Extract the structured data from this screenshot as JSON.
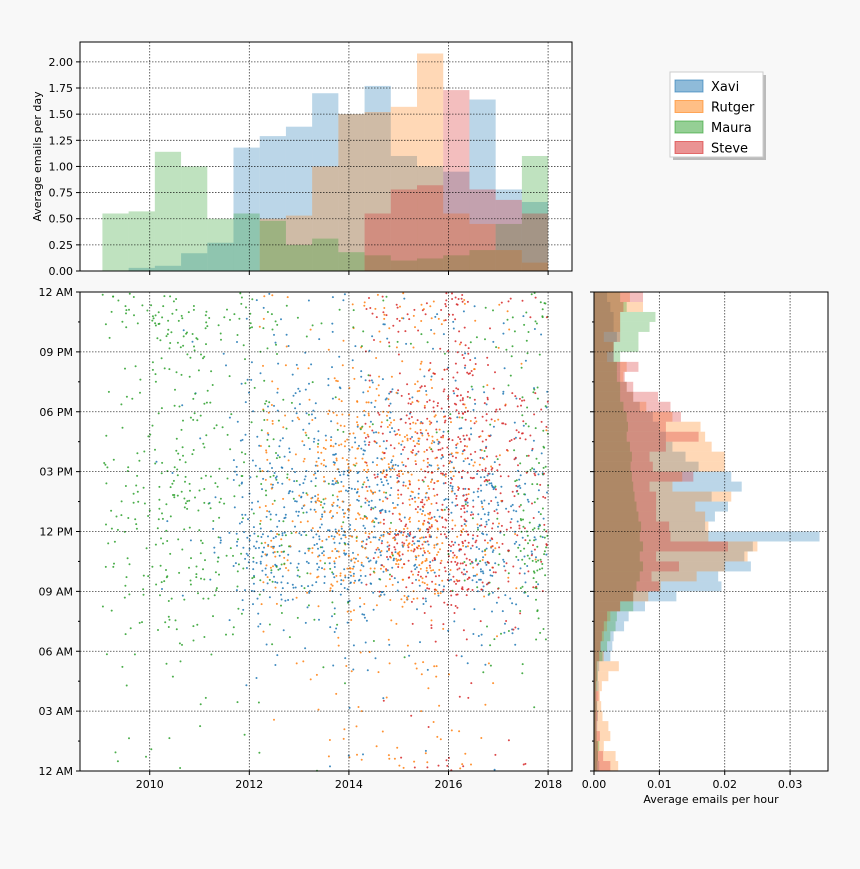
{
  "colors": {
    "Xavi": "#1f77b4",
    "Rutger": "#ff7f0e",
    "Maura": "#2ca02c",
    "Steve": "#d62728"
  },
  "chart_data": [
    {
      "id": "top-histogram",
      "type": "bar",
      "title": "",
      "xlabel": "",
      "ylabel": "Average emails per day",
      "xlim": [
        2008.6,
        2018.48
      ],
      "ylim": [
        0,
        2.19
      ],
      "grid": true,
      "yticks": [
        "0.00",
        "0.25",
        "0.50",
        "0.75",
        "1.00",
        "1.25",
        "1.50",
        "1.75",
        "2.00"
      ],
      "ytick_values": [
        0,
        0.25,
        0.5,
        0.75,
        1.0,
        1.25,
        1.5,
        1.75,
        2.0
      ],
      "xtick_values": [
        2010,
        2012,
        2014,
        2016,
        2018
      ],
      "bin_start": 2009.05,
      "bin_end": 2018.0,
      "series": [
        {
          "name": "Xavi",
          "values": [
            0,
            0.03,
            0.05,
            0.17,
            0.27,
            1.18,
            1.29,
            1.38,
            1.7,
            1.5,
            1.77,
            1.1,
            1.0,
            0.95,
            1.64,
            0.78,
            0.66
          ]
        },
        {
          "name": "Rutger",
          "values": [
            0,
            0,
            0,
            0,
            0,
            0,
            0.5,
            0.53,
            1.0,
            1.5,
            1.52,
            1.57,
            2.08,
            0.55,
            0.45,
            0.2,
            0.08
          ]
        },
        {
          "name": "Maura",
          "values": [
            0.55,
            0.57,
            1.14,
            1.0,
            0.5,
            0.55,
            0.48,
            0.25,
            0.31,
            0.18,
            0.15,
            0.1,
            0.12,
            0.15,
            0.2,
            0.45,
            1.1
          ]
        },
        {
          "name": "Steve",
          "values": [
            0,
            0,
            0,
            0,
            0,
            0,
            0,
            0,
            0,
            0,
            0.55,
            0.78,
            0.82,
            1.73,
            0.78,
            0.68,
            0.55
          ]
        }
      ]
    },
    {
      "id": "scatter",
      "type": "scatter",
      "xlabel": "",
      "ylabel": "",
      "xlim": [
        2008.6,
        2018.48
      ],
      "ylim_hours": [
        0,
        24
      ],
      "grid": true,
      "xticks": [
        "2010",
        "2012",
        "2014",
        "2016",
        "2018"
      ],
      "xtick_values": [
        2010,
        2012,
        2014,
        2016,
        2018
      ],
      "yticks": [
        "12 AM",
        "03 AM",
        "06 AM",
        "09 AM",
        "12 PM",
        "03 PM",
        "06 PM",
        "09 PM",
        "12 AM"
      ],
      "ytick_hours": [
        0,
        3,
        6,
        9,
        12,
        15,
        18,
        21,
        24
      ],
      "point_counts": {
        "Xavi": 950,
        "Rutger": 750,
        "Maura": 700,
        "Steve": 650
      },
      "note": "each point is one email: x = date, y = time of day; generated from the marginal histograms"
    },
    {
      "id": "right-histogram",
      "type": "bar",
      "orientation": "horizontal",
      "xlabel": "Average emails per hour",
      "xlim": [
        0,
        0.0358
      ],
      "xticks": [
        "0.00",
        "0.01",
        "0.02",
        "0.03"
      ],
      "xtick_values": [
        0,
        0.01,
        0.02,
        0.03
      ],
      "bin_hours": 0.5,
      "grid": true,
      "series": [
        {
          "name": "Xavi",
          "values": [
            0.0008,
            0.0006,
            0.0005,
            0.0004,
            0.0005,
            0.0006,
            0.0005,
            0.0004,
            0.0007,
            0.0006,
            0.0008,
            0.0025,
            0.0028,
            0.003,
            0.0046,
            0.0053,
            0.0078,
            0.0126,
            0.0195,
            0.019,
            0.024,
            0.023,
            0.0243,
            0.0345,
            0.017,
            0.0185,
            0.0205,
            0.018,
            0.0226,
            0.021,
            0.016,
            0.014,
            0.012,
            0.011,
            0.01,
            0.009,
            0.007,
            0.006,
            0.005,
            0.004,
            0.004,
            0.003,
            0.003,
            0.0035,
            0.003,
            0.003,
            0.0025,
            0.002
          ]
        },
        {
          "name": "Rutger",
          "values": [
            0.0037,
            0.0033,
            0.0015,
            0.0025,
            0.0022,
            0.0013,
            0.0011,
            0.0009,
            0.0012,
            0.0022,
            0.0038,
            0.0015,
            0.001,
            0.0015,
            0.002,
            0.0025,
            0.004,
            0.0083,
            0.0102,
            0.0157,
            0.02,
            0.0235,
            0.025,
            0.0175,
            0.0175,
            0.017,
            0.0155,
            0.021,
            0.012,
            0.0135,
            0.02,
            0.02,
            0.018,
            0.017,
            0.0163,
            0.012,
            0.008,
            0.006,
            0.005,
            0.0045,
            0.005,
            0.002,
            0.003,
            0.0015,
            0.004,
            0.004,
            0.0075,
            0.0055
          ]
        },
        {
          "name": "Maura",
          "values": [
            0.0005,
            0.0006,
            0.0008,
            0.0004,
            0.0003,
            0.0003,
            0.0004,
            0.0003,
            0.0004,
            0.0005,
            0.0005,
            0.0013,
            0.002,
            0.0025,
            0.0033,
            0.0035,
            0.006,
            0.006,
            0.0065,
            0.007,
            0.0075,
            0.007,
            0.0075,
            0.007,
            0.0072,
            0.0068,
            0.0065,
            0.0062,
            0.006,
            0.0058,
            0.0056,
            0.0058,
            0.0055,
            0.005,
            0.0052,
            0.005,
            0.0045,
            0.004,
            0.004,
            0.0035,
            0.0035,
            0.004,
            0.0068,
            0.0068,
            0.0085,
            0.0094,
            0.005,
            0.004
          ]
        },
        {
          "name": "Steve",
          "values": [
            0.0025,
            0.0014,
            0.0006,
            0.0009,
            0.0004,
            0.0005,
            0.0004,
            0.0007,
            0.0003,
            0.0004,
            0.0004,
            0.0008,
            0.001,
            0.0012,
            0.0015,
            0.002,
            0.004,
            0.006,
            0.01,
            0.0088,
            0.013,
            0.0095,
            0.0205,
            0.0117,
            0.0115,
            0.0095,
            0.0095,
            0.0095,
            0.0085,
            0.0152,
            0.009,
            0.0085,
            0.011,
            0.016,
            0.011,
            0.0133,
            0.0117,
            0.0098,
            0.006,
            0.0047,
            0.0068,
            0.003,
            0.003,
            0.004,
            0.004,
            0.004,
            0.0045,
            0.0075
          ]
        }
      ]
    }
  ],
  "legend": {
    "placement": "top-right",
    "entries": [
      "Xavi",
      "Rutger",
      "Maura",
      "Steve"
    ]
  }
}
